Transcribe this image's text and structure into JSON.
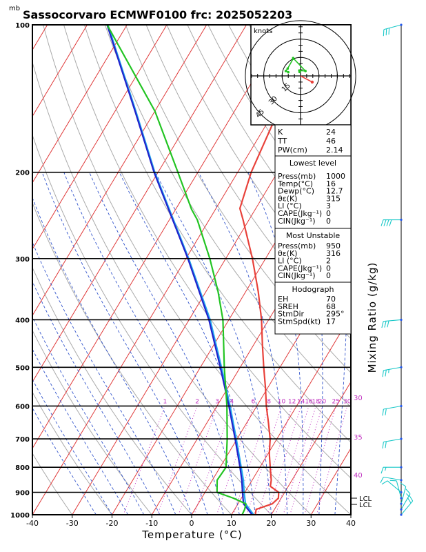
{
  "header": {
    "mb_unit": "mb",
    "title": "Sassocorvaro ECMWF0100 frc: 2025052203"
  },
  "axes": {
    "xlabel": "Temperature (°C)",
    "right_label": "Mixing Ratio (g/kg)",
    "hodo_label": "knots",
    "lcl_label_1": "LCL",
    "lcl_label_2": "LCL"
  },
  "info": {
    "k_label": "K",
    "k_value": "24",
    "tt_label": "TT",
    "tt_value": "46",
    "pw_label": "PW(cm)",
    "pw_value": "2.14",
    "lowest_title": "Lowest level",
    "lowest_rows": [
      {
        "label": "Press(mb)",
        "value": "1000"
      },
      {
        "label": "Temp(°C)",
        "value": "16"
      },
      {
        "label": "Dewp(°C)",
        "value": "12.7"
      },
      {
        "label": "θε(K)",
        "value": "315"
      },
      {
        "label": "LI (°C)",
        "value": "3"
      },
      {
        "label": "CAPE(Jkg⁻¹)",
        "value": "0"
      },
      {
        "label": "CIN(Jkg⁻¹)",
        "value": "0"
      }
    ],
    "unstable_title": "Most Unstable",
    "unstable_rows": [
      {
        "label": "Press(mb)",
        "value": "950"
      },
      {
        "label": "θε(K)",
        "value": "316"
      },
      {
        "label": "LI (°C)",
        "value": "2"
      },
      {
        "label": "CAPE(Jkg⁻¹)",
        "value": "0"
      },
      {
        "label": "CIN(Jkg⁻¹)",
        "value": "0"
      }
    ],
    "hodo_title": "Hodograph",
    "hodo_rows": [
      {
        "label": "EH",
        "value": "70"
      },
      {
        "label": "SREH",
        "value": "68"
      },
      {
        "label": "StmDir",
        "value": "295°"
      },
      {
        "label": "StmSpd(kt)",
        "value": "17"
      }
    ]
  },
  "chart_data": {
    "type": "line",
    "title": "Sassocorvaro ECMWF0100 frc: 2025052203",
    "xlabel": "Temperature (°C)",
    "ylabel": "mb",
    "y_scale": "log (pressure)",
    "xlim": [
      -40,
      40
    ],
    "ylim": [
      1000,
      100
    ],
    "x_ticks": [
      "-40",
      "-30",
      "-20",
      "-10",
      "0",
      "10",
      "20",
      "30",
      "40"
    ],
    "y_ticks": [
      "1000",
      "900",
      "800",
      "700",
      "600",
      "500",
      "400",
      "300",
      "200",
      "100"
    ],
    "mixing_ratio_labels": [
      "1",
      "2",
      "3",
      "4",
      "6",
      "8",
      "10",
      "12",
      "14",
      "16",
      "18",
      "20",
      "25",
      "30"
    ],
    "wetbulb_labels": [
      "30",
      "35",
      "40"
    ],
    "series": [
      {
        "key": "temperature",
        "color": "#e8413a",
        "points": [
          [
            1000,
            16
          ],
          [
            975,
            15.4
          ],
          [
            950,
            18.6
          ],
          [
            925,
            19.3
          ],
          [
            900,
            18.5
          ],
          [
            875,
            15.5
          ],
          [
            850,
            14.8
          ],
          [
            800,
            12.6
          ],
          [
            750,
            10.3
          ],
          [
            700,
            8.3
          ],
          [
            650,
            5.5
          ],
          [
            600,
            2.4
          ],
          [
            550,
            -0.6
          ],
          [
            500,
            -4.1
          ],
          [
            450,
            -7.8
          ],
          [
            400,
            -11.8
          ],
          [
            350,
            -16.9
          ],
          [
            300,
            -23.3
          ],
          [
            250,
            -31.5
          ],
          [
            237,
            -34
          ],
          [
            200,
            -36.6
          ],
          [
            150,
            -39
          ],
          [
            100,
            -43
          ]
        ]
      },
      {
        "key": "dewpoint",
        "color": "#22c422",
        "points": [
          [
            1000,
            12.7
          ],
          [
            975,
            12.5
          ],
          [
            950,
            12.0
          ],
          [
            925,
            8
          ],
          [
            900,
            3
          ],
          [
            850,
            1.2
          ],
          [
            800,
            1.5
          ],
          [
            700,
            -2.5
          ],
          [
            600,
            -7.5
          ],
          [
            500,
            -14
          ],
          [
            400,
            -21.5
          ],
          [
            350,
            -27
          ],
          [
            300,
            -34
          ],
          [
            250,
            -43
          ],
          [
            238,
            -46
          ],
          [
            200,
            -55
          ],
          [
            150,
            -70
          ],
          [
            100,
            -95
          ]
        ]
      },
      {
        "key": "parcel",
        "color": "#2222cc",
        "points": [
          [
            1000,
            15.2
          ],
          [
            950,
            11.4
          ],
          [
            900,
            9.4
          ],
          [
            850,
            7.4
          ],
          [
            800,
            5.0
          ],
          [
            700,
            -0.5
          ],
          [
            600,
            -7
          ],
          [
            500,
            -15
          ],
          [
            400,
            -25
          ],
          [
            300,
            -39.5
          ],
          [
            200,
            -61
          ],
          [
            150,
            -75
          ],
          [
            100,
            -95
          ]
        ]
      },
      {
        "key": "virtual",
        "color": "#22aaee",
        "points": [
          [
            1000,
            15.6
          ],
          [
            950,
            11.9
          ],
          [
            900,
            9.8
          ],
          [
            850,
            7.8
          ],
          [
            800,
            5.3
          ],
          [
            700,
            -0.2
          ],
          [
            600,
            -6.7
          ],
          [
            500,
            -14.7
          ],
          [
            400,
            -24.7
          ],
          [
            300,
            -39.3
          ],
          [
            200,
            -60.8
          ],
          [
            150,
            -74.8
          ],
          [
            100,
            -94.8
          ]
        ]
      }
    ],
    "wind_barbs": [
      {
        "p": 1000,
        "dir": 40,
        "spd": 18
      },
      {
        "p": 975,
        "dir": 30,
        "spd": 16
      },
      {
        "p": 950,
        "dir": 15,
        "spd": 12
      },
      {
        "p": 925,
        "dir": 345,
        "spd": 10
      },
      {
        "p": 900,
        "dir": 310,
        "spd": 10
      },
      {
        "p": 850,
        "dir": 280,
        "spd": 12
      },
      {
        "p": 800,
        "dir": 270,
        "spd": 15
      },
      {
        "p": 700,
        "dir": 260,
        "spd": 18
      },
      {
        "p": 600,
        "dir": 260,
        "spd": 22
      },
      {
        "p": 500,
        "dir": 260,
        "spd": 27
      },
      {
        "p": 400,
        "dir": 265,
        "spd": 32
      },
      {
        "p": 250,
        "dir": 270,
        "spd": 40
      },
      {
        "p": 100,
        "dir": 255,
        "spd": 28
      }
    ],
    "hodograph": {
      "ring_labels": [
        "15",
        "30",
        "45"
      ],
      "wind_points": [
        [
          -0.8,
          3.2
        ],
        [
          -1.0,
          4.4
        ],
        [
          4.0,
          4.0
        ],
        [
          -6.0,
          14.5
        ],
        [
          -6.0,
          14.0
        ],
        [
          -10.5,
          6.0
        ],
        [
          -12.0,
          4.0
        ],
        [
          -10.0,
          3.0
        ]
      ],
      "storm_motion": [
        9.5,
        -5
      ]
    }
  },
  "colors": {
    "isotherm": "#e03a3a",
    "dry_adiabat": "#aaaaaa",
    "moist_adiabat": "#3355cc",
    "mixing_ratio": "#c030c0",
    "barb": "#18c8c8",
    "barb_marker": "#2255ee"
  }
}
